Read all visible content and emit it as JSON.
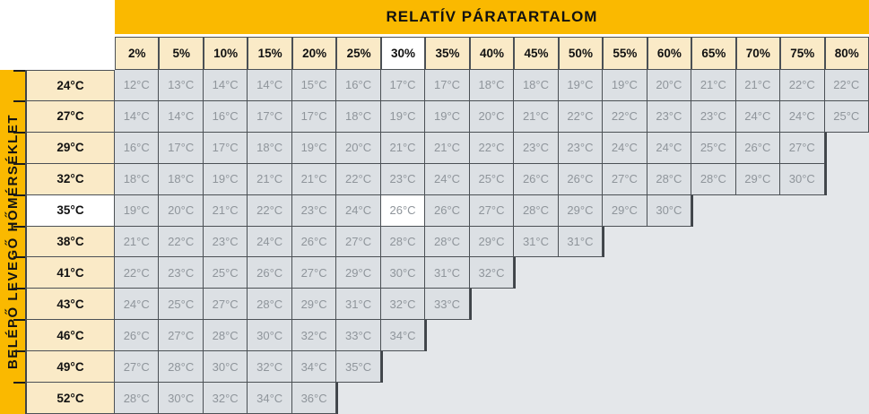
{
  "title": "RELATÍV PÁRATARTALOM",
  "y_axis_label": "BELÉPŐ LEVEGŐ HŐMÉRSÉKLET",
  "unit": "°C",
  "chart_data": {
    "type": "table",
    "title": "RELATÍV PÁRATARTALOM",
    "row_axis_label": "BELÉPŐ LEVEGŐ HŐMÉRSÉKLET",
    "columns": [
      "2%",
      "5%",
      "10%",
      "15%",
      "20%",
      "25%",
      "30%",
      "35%",
      "40%",
      "45%",
      "50%",
      "55%",
      "60%",
      "65%",
      "70%",
      "75%",
      "80%"
    ],
    "rows": [
      {
        "inlet_temp": 24,
        "outlet_temps": [
          12,
          13,
          14,
          14,
          15,
          16,
          17,
          17,
          18,
          18,
          19,
          19,
          20,
          21,
          21,
          22,
          22
        ]
      },
      {
        "inlet_temp": 27,
        "outlet_temps": [
          14,
          14,
          16,
          17,
          17,
          18,
          19,
          19,
          20,
          21,
          22,
          22,
          23,
          23,
          24,
          24,
          25
        ]
      },
      {
        "inlet_temp": 29,
        "outlet_temps": [
          16,
          17,
          17,
          18,
          19,
          20,
          21,
          21,
          22,
          23,
          23,
          24,
          24,
          25,
          26,
          27
        ]
      },
      {
        "inlet_temp": 32,
        "outlet_temps": [
          18,
          18,
          19,
          21,
          21,
          22,
          23,
          24,
          25,
          26,
          26,
          27,
          28,
          28,
          29,
          30
        ]
      },
      {
        "inlet_temp": 35,
        "outlet_temps": [
          19,
          20,
          21,
          22,
          23,
          24,
          26,
          26,
          27,
          28,
          29,
          29,
          30
        ]
      },
      {
        "inlet_temp": 38,
        "outlet_temps": [
          21,
          22,
          23,
          24,
          26,
          27,
          28,
          28,
          29,
          31,
          31
        ]
      },
      {
        "inlet_temp": 41,
        "outlet_temps": [
          22,
          23,
          25,
          26,
          27,
          29,
          30,
          31,
          32
        ]
      },
      {
        "inlet_temp": 43,
        "outlet_temps": [
          24,
          25,
          27,
          28,
          29,
          31,
          32,
          33
        ]
      },
      {
        "inlet_temp": 46,
        "outlet_temps": [
          26,
          27,
          28,
          30,
          32,
          33,
          34
        ]
      },
      {
        "inlet_temp": 49,
        "outlet_temps": [
          27,
          28,
          30,
          32,
          34,
          35
        ]
      },
      {
        "inlet_temp": 52,
        "outlet_temps": [
          28,
          30,
          32,
          34,
          36
        ]
      }
    ],
    "highlight": {
      "column": "30%",
      "row_inlet_temp": 35,
      "cell_value": 26
    }
  },
  "colors": {
    "gold": "#fab900",
    "cream": "#faeac7",
    "cell_bg": "#dce0e4",
    "empty_bg": "#e4e7ea",
    "border": "#4b5055",
    "cell_text": "#8f959b",
    "highlight_bg": "#ffffff"
  }
}
